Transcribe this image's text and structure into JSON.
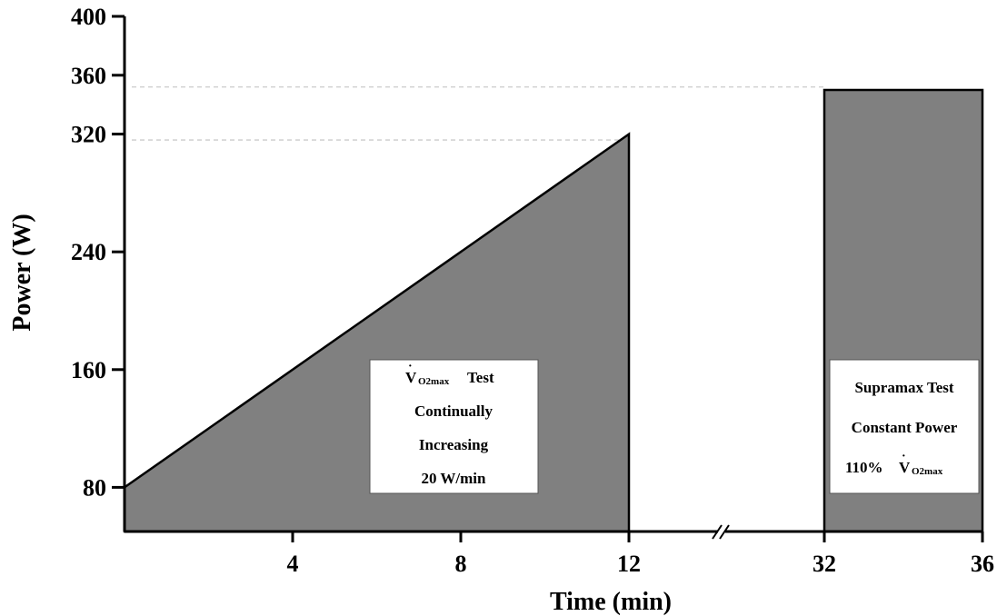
{
  "chart_data": {
    "type": "area",
    "xlabel": "Time (min)",
    "ylabel": "Power (W)",
    "ylim": [
      50,
      400
    ],
    "y_ticks": [
      80,
      160,
      240,
      320,
      360,
      400
    ],
    "x_ticks": [
      "4",
      "8",
      "12",
      "32",
      "36"
    ],
    "x_axis_break": "between 12 and 32",
    "grid": false,
    "series": [
      {
        "phase": "ramp",
        "points": [
          {
            "x": 0,
            "y": 80
          },
          {
            "x": 12,
            "y": 320
          }
        ]
      },
      {
        "phase": "constant",
        "points": [
          {
            "x": 32,
            "y": 350
          },
          {
            "x": 36,
            "y": 350
          }
        ]
      }
    ],
    "reference_lines": [
      {
        "y": 316
      },
      {
        "y": 352
      }
    ],
    "annotations": {
      "ramp_box": {
        "line1_v": "V",
        "line1_sub": "O2max",
        "line1_rest": "Test",
        "line2": "Continually",
        "line3": "Increasing",
        "line4": "20 W/min"
      },
      "supramax_box": {
        "line1": "Supramax Test",
        "line2": "Constant Power",
        "line3_prefix": "110%",
        "line3_v": "V",
        "line3_sub": "O2max"
      }
    },
    "colors": {
      "fill": "#808080",
      "axis": "#000000",
      "box": "#ffffff",
      "reference": "#cccccc"
    }
  }
}
